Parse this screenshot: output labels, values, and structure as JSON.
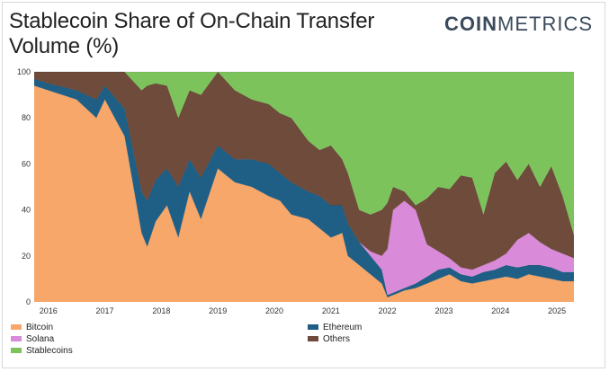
{
  "header": {
    "title": "Stablecoin Share of On-Chain Transfer Volume (%)",
    "logo_bold": "COIN",
    "logo_light": "METRICS"
  },
  "legend": [
    {
      "name": "Bitcoin",
      "color": "#f7a76a"
    },
    {
      "name": "Ethereum",
      "color": "#1f5f86"
    },
    {
      "name": "Solana",
      "color": "#d98ad8"
    },
    {
      "name": "Others",
      "color": "#6e4b3a"
    },
    {
      "name": "Stablecoins",
      "color": "#7cc35c"
    }
  ],
  "chart_data": {
    "type": "area",
    "stacked": true,
    "x_labels": [
      "2016",
      "2017",
      "2018",
      "2019",
      "2020",
      "2021",
      "2022",
      "2023",
      "2024",
      "2025"
    ],
    "ylim": [
      0,
      100
    ],
    "yticks": [
      0,
      20,
      40,
      60,
      80,
      100
    ],
    "grid": false,
    "legend_position": "bottom",
    "x": [
      2015.75,
      2016.0,
      2016.5,
      2016.85,
      2017.0,
      2017.35,
      2017.65,
      2017.75,
      2017.9,
      2018.1,
      2018.3,
      2018.5,
      2018.7,
      2019.0,
      2019.3,
      2019.6,
      2019.9,
      2020.1,
      2020.3,
      2020.6,
      2020.8,
      2021.0,
      2021.2,
      2021.3,
      2021.5,
      2021.7,
      2021.9,
      2022.0,
      2022.1,
      2022.3,
      2022.5,
      2022.7,
      2022.9,
      2023.1,
      2023.3,
      2023.5,
      2023.7,
      2023.9,
      2024.1,
      2024.3,
      2024.5,
      2024.7,
      2024.9,
      2025.1,
      2025.3
    ],
    "series": [
      {
        "name": "Bitcoin",
        "values": [
          94,
          92,
          88,
          80,
          88,
          72,
          30,
          24,
          35,
          42,
          28,
          48,
          36,
          58,
          52,
          50,
          46,
          44,
          38,
          36,
          32,
          28,
          30,
          20,
          16,
          12,
          8,
          2,
          3,
          5,
          6,
          8,
          10,
          12,
          9,
          8,
          9,
          10,
          11,
          10,
          12,
          11,
          10,
          9,
          9
        ]
      },
      {
        "name": "Ethereum",
        "values": [
          3,
          3,
          4,
          8,
          6,
          12,
          18,
          20,
          18,
          16,
          22,
          14,
          18,
          10,
          10,
          12,
          14,
          12,
          14,
          12,
          14,
          14,
          12,
          14,
          10,
          8,
          6,
          1,
          1,
          1,
          2,
          3,
          4,
          3,
          3,
          3,
          4,
          4,
          5,
          5,
          4,
          5,
          5,
          4,
          4
        ]
      },
      {
        "name": "Solana",
        "values": [
          0,
          0,
          0,
          0,
          0,
          0,
          0,
          0,
          0,
          0,
          0,
          0,
          0,
          0,
          0,
          0,
          0,
          0,
          0,
          0,
          0,
          0,
          0,
          0,
          0,
          2,
          6,
          20,
          36,
          38,
          32,
          14,
          8,
          4,
          3,
          3,
          3,
          4,
          5,
          12,
          14,
          10,
          8,
          8,
          6
        ]
      },
      {
        "name": "Others",
        "values": [
          3,
          5,
          8,
          12,
          6,
          16,
          44,
          50,
          42,
          36,
          30,
          30,
          36,
          32,
          30,
          26,
          26,
          26,
          28,
          22,
          20,
          26,
          20,
          22,
          14,
          16,
          20,
          20,
          10,
          4,
          2,
          20,
          28,
          30,
          40,
          40,
          22,
          38,
          40,
          26,
          30,
          24,
          36,
          25,
          10
        ]
      },
      {
        "name": "Stablecoins",
        "values": [
          0,
          0,
          0,
          0,
          0,
          0,
          8,
          6,
          5,
          6,
          20,
          8,
          10,
          0,
          8,
          12,
          14,
          18,
          20,
          30,
          34,
          32,
          38,
          44,
          60,
          62,
          60,
          57,
          50,
          52,
          58,
          55,
          50,
          51,
          45,
          46,
          62,
          44,
          39,
          47,
          40,
          50,
          41,
          54,
          71
        ]
      }
    ]
  }
}
